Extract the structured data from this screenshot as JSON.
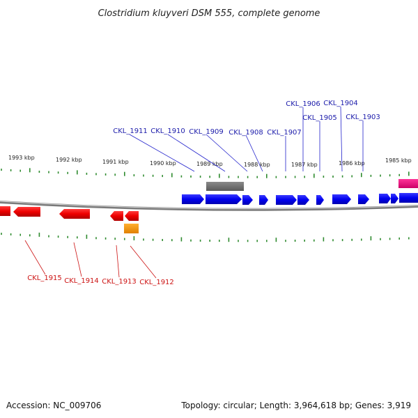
{
  "title": "Clostridium kluyveri DSM 555, complete genome",
  "footer": {
    "accession": "Accession: NC_009706",
    "topology": "Topology: circular; Length: 3,964,618 bp; Genes: 3,919"
  },
  "colors": {
    "forward_gene": "#0000ee",
    "reverse_gene": "#ee0000",
    "forward_label": "#1a1aaa",
    "reverse_label": "#cc1111",
    "tick": "#2e8b2e",
    "backbone": "#888888",
    "rna": "#707070",
    "orange_feature": "#ff9900",
    "pink_feature": "#ee0077"
  },
  "scale": {
    "kbp_labels": [
      "1993 kbp",
      "1992 kbp",
      "1991 kbp",
      "1990 kbp",
      "1989 kbp",
      "1988 kbp",
      "1987 kbp",
      "1986 kbp",
      "1985 kbp"
    ]
  },
  "forward_genes": [
    "CKL_1911",
    "CKL_1910",
    "CKL_1909",
    "CKL_1908",
    "CKL_1907",
    "CKL_1906",
    "CKL_1905",
    "CKL_1904",
    "CKL_1903"
  ],
  "reverse_genes": [
    "CKL_1915",
    "CKL_1914",
    "CKL_1913",
    "CKL_1912"
  ]
}
